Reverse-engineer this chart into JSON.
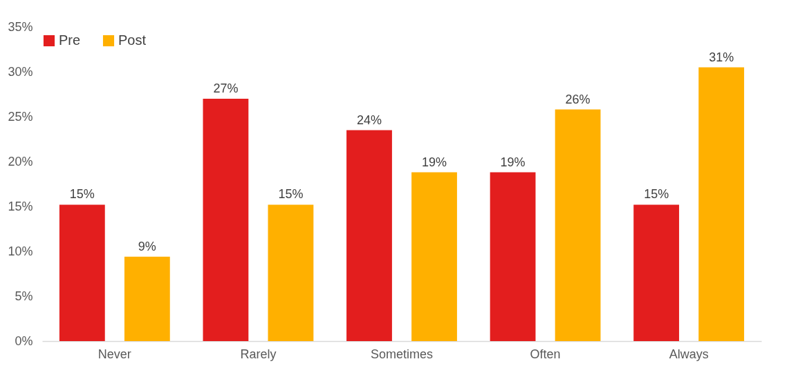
{
  "chart_data": {
    "type": "bar",
    "categories": [
      "Never",
      "Rarely",
      "Sometimes",
      "Often",
      "Always"
    ],
    "series": [
      {
        "name": "Pre",
        "color": "#e31e1e",
        "values": [
          15.2,
          27.0,
          23.5,
          18.8,
          15.2
        ],
        "value_labels": [
          "15%",
          "27%",
          "24%",
          "19%",
          "15%"
        ]
      },
      {
        "name": "Post",
        "color": "#ffb000",
        "values": [
          9.4,
          15.2,
          18.8,
          25.8,
          30.5
        ],
        "value_labels": [
          "9%",
          "15%",
          "19%",
          "26%",
          "31%"
        ]
      }
    ],
    "ylim": [
      0,
      35
    ],
    "yticks": [
      {
        "value": 0,
        "label": "0%"
      },
      {
        "value": 5,
        "label": "5%"
      },
      {
        "value": 10,
        "label": "10%"
      },
      {
        "value": 15,
        "label": "15%"
      },
      {
        "value": 20,
        "label": "20%"
      },
      {
        "value": 25,
        "label": "25%"
      },
      {
        "value": 30,
        "label": "30%"
      },
      {
        "value": 35,
        "label": "35%"
      }
    ],
    "grid": false,
    "legend": "top"
  }
}
